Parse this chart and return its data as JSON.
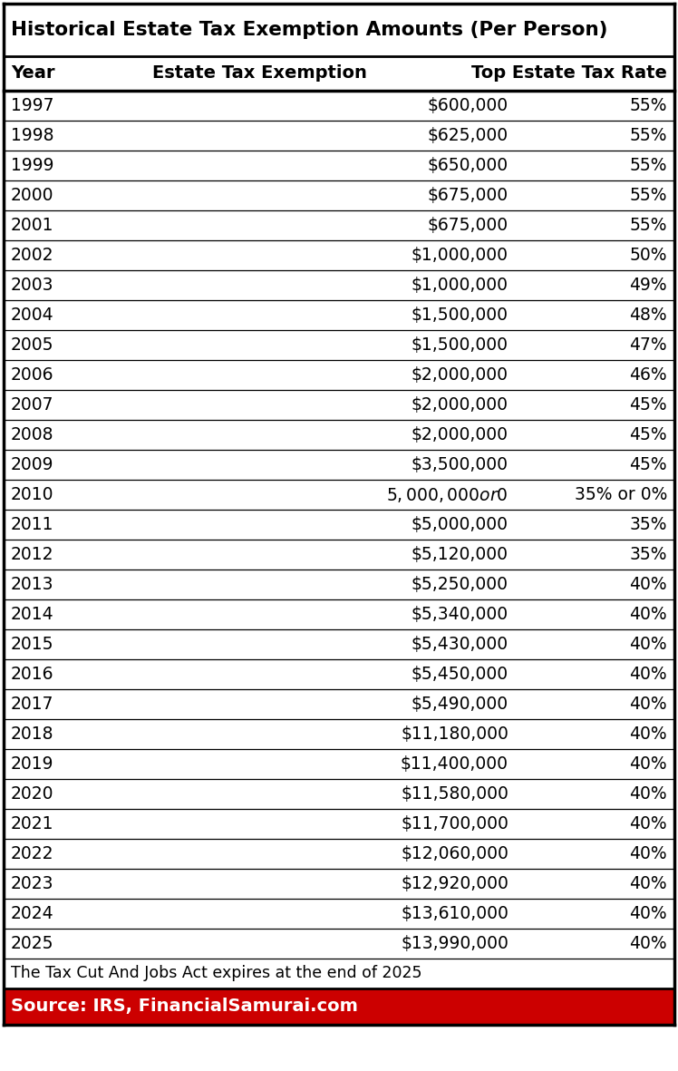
{
  "title": "Historical Estate Tax Exemption Amounts (Per Person)",
  "col_headers": [
    "Year",
    "Estate Tax Exemption",
    "Top Estate Tax Rate"
  ],
  "rows": [
    [
      "1997",
      "$600,000",
      "55%"
    ],
    [
      "1998",
      "$625,000",
      "55%"
    ],
    [
      "1999",
      "$650,000",
      "55%"
    ],
    [
      "2000",
      "$675,000",
      "55%"
    ],
    [
      "2001",
      "$675,000",
      "55%"
    ],
    [
      "2002",
      "$1,000,000",
      "50%"
    ],
    [
      "2003",
      "$1,000,000",
      "49%"
    ],
    [
      "2004",
      "$1,500,000",
      "48%"
    ],
    [
      "2005",
      "$1,500,000",
      "47%"
    ],
    [
      "2006",
      "$2,000,000",
      "46%"
    ],
    [
      "2007",
      "$2,000,000",
      "45%"
    ],
    [
      "2008",
      "$2,000,000",
      "45%"
    ],
    [
      "2009",
      "$3,500,000",
      "45%"
    ],
    [
      "2010",
      "$5,000,000 or $0",
      "35% or 0%"
    ],
    [
      "2011",
      "$5,000,000",
      "35%"
    ],
    [
      "2012",
      "$5,120,000",
      "35%"
    ],
    [
      "2013",
      "$5,250,000",
      "40%"
    ],
    [
      "2014",
      "$5,340,000",
      "40%"
    ],
    [
      "2015",
      "$5,430,000",
      "40%"
    ],
    [
      "2016",
      "$5,450,000",
      "40%"
    ],
    [
      "2017",
      "$5,490,000",
      "40%"
    ],
    [
      "2018",
      "$11,180,000",
      "40%"
    ],
    [
      "2019",
      "$11,400,000",
      "40%"
    ],
    [
      "2020",
      "$11,580,000",
      "40%"
    ],
    [
      "2021",
      "$11,700,000",
      "40%"
    ],
    [
      "2022",
      "$12,060,000",
      "40%"
    ],
    [
      "2023",
      "$12,920,000",
      "40%"
    ],
    [
      "2024",
      "$13,610,000",
      "40%"
    ],
    [
      "2025",
      "$13,990,000",
      "40%"
    ]
  ],
  "footnote": "The Tax Cut And Jobs Act expires at the end of 2025",
  "source_text": "Source: IRS, FinancialSamurai.com",
  "source_bg": "#CC0000",
  "source_text_color": "#FFFFFF",
  "text_color": "#000000",
  "title_fontsize": 15.5,
  "header_fontsize": 14,
  "row_fontsize": 13.5,
  "footnote_fontsize": 12.5,
  "source_fontsize": 14,
  "fig_width": 7.48,
  "fig_height": 11.81,
  "dpi": 100
}
